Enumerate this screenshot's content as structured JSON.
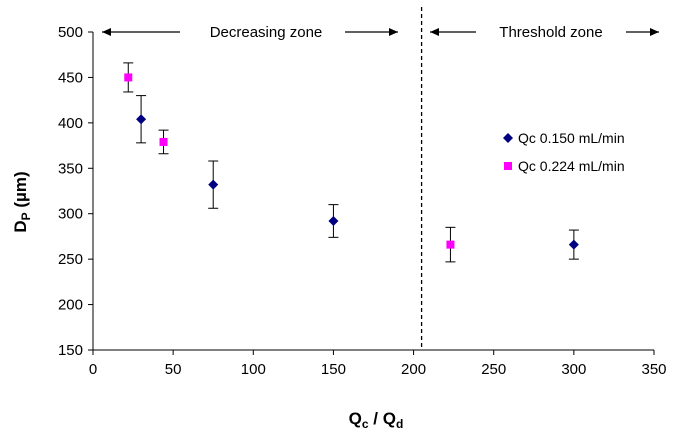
{
  "chart_data": {
    "type": "scatter",
    "xlabel": {
      "main": "Q",
      "sub1": "c",
      "sep": " / Q",
      "sub2": "d"
    },
    "ylabel": {
      "main": "D",
      "sub": "P",
      "unit": " (µm)"
    },
    "xlim": [
      0,
      350
    ],
    "ylim": [
      150,
      500
    ],
    "xticks": [
      0,
      50,
      100,
      150,
      200,
      250,
      300,
      350
    ],
    "yticks": [
      150,
      200,
      250,
      300,
      350,
      400,
      450,
      500
    ],
    "grid": false,
    "legend_position": "right",
    "threshold_line_x": 205,
    "zones": [
      {
        "label": "Decreasing zone",
        "from": 0,
        "to": 205
      },
      {
        "label": "Threshold zone",
        "from": 205,
        "to": 350
      }
    ],
    "series": [
      {
        "name": "Qc 0.150 mL/min",
        "marker": "diamond",
        "color": "#000080",
        "points": [
          {
            "x": 30,
            "y": 404,
            "err": 26
          },
          {
            "x": 75,
            "y": 332,
            "err": 26
          },
          {
            "x": 150,
            "y": 292,
            "err": 18
          },
          {
            "x": 300,
            "y": 266,
            "err": 16
          }
        ]
      },
      {
        "name": "Qc 0.224 mL/min",
        "marker": "square",
        "color": "#FF00FF",
        "points": [
          {
            "x": 22,
            "y": 450,
            "err": 16
          },
          {
            "x": 44,
            "y": 379,
            "err": 13
          },
          {
            "x": 223,
            "y": 266,
            "err": 19
          }
        ]
      }
    ]
  }
}
